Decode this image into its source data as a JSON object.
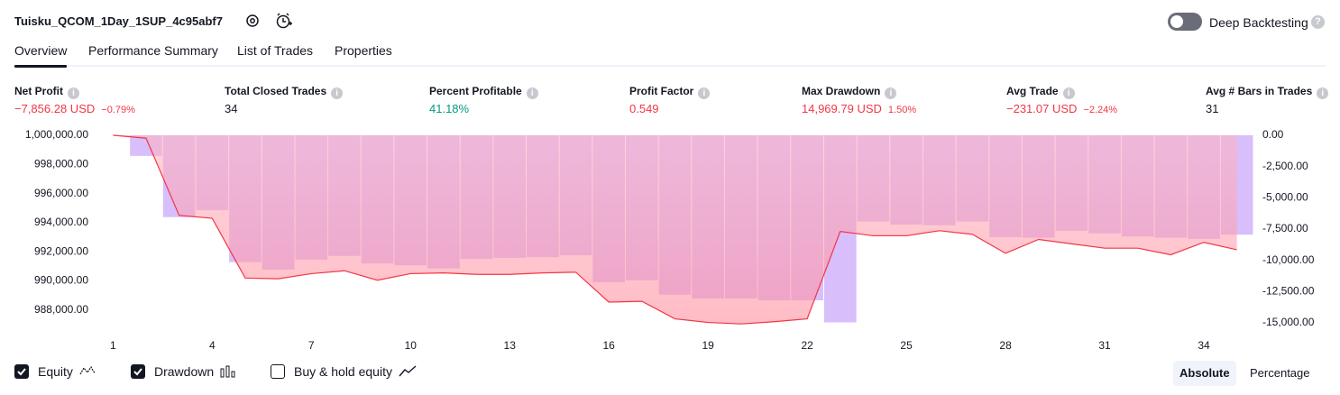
{
  "header": {
    "title": "Tuisku_QCOM_1Day_1SUP_4c95abf7",
    "deep_backtesting": "Deep Backtesting",
    "deep_backtesting_on": false
  },
  "tabs": [
    "Overview",
    "Performance Summary",
    "List of Trades",
    "Properties"
  ],
  "active_tab": 0,
  "stats": [
    {
      "label": "Net Profit",
      "value": "−7,856.28 USD",
      "sub": "−0.79%",
      "color": "#f23645"
    },
    {
      "label": "Total Closed Trades",
      "value": "34",
      "color": "#131722"
    },
    {
      "label": "Percent Profitable",
      "value": "41.18%",
      "color": "#089981"
    },
    {
      "label": "Profit Factor",
      "value": "0.549",
      "color": "#f23645"
    },
    {
      "label": "Max Drawdown",
      "value": "14,969.79 USD",
      "sub": "1.50%",
      "color": "#f23645"
    },
    {
      "label": "Avg Trade",
      "value": "−231.07 USD",
      "sub": "−2.24%",
      "color": "#f23645"
    },
    {
      "label": "Avg # Bars in Trades",
      "value": "31",
      "color": "#131722"
    }
  ],
  "chart_data": {
    "type": "combo",
    "x": [
      1,
      2,
      3,
      4,
      5,
      6,
      7,
      8,
      9,
      10,
      11,
      12,
      13,
      14,
      15,
      16,
      17,
      18,
      19,
      20,
      21,
      22,
      23,
      24,
      25,
      26,
      27,
      28,
      29,
      30,
      31,
      32,
      33,
      34,
      35
    ],
    "xlim": [
      0.5,
      35.5
    ],
    "xticks": [
      1,
      4,
      7,
      10,
      13,
      16,
      19,
      22,
      25,
      28,
      31,
      34
    ],
    "ylim": [
      987000,
      1000000
    ],
    "yticks": [
      {
        "value": 1000000,
        "label": "1,000,000.00"
      },
      {
        "value": 998000,
        "label": "998,000.00"
      },
      {
        "value": 996000,
        "label": "996,000.00"
      },
      {
        "value": 994000,
        "label": "994,000.00"
      },
      {
        "value": 992000,
        "label": "992,000.00"
      },
      {
        "value": 990000,
        "label": "990,000.00"
      },
      {
        "value": 988000,
        "label": "988,000.00"
      }
    ],
    "y2lim": [
      -15150,
      0
    ],
    "y2ticks": [
      {
        "value": 0,
        "label": "0.00"
      },
      {
        "value": -2500,
        "label": "-2,500.00"
      },
      {
        "value": -5000,
        "label": "-5,000.00"
      },
      {
        "value": -7500,
        "label": "-7,500.00"
      },
      {
        "value": -10000,
        "label": "-10,000.00"
      },
      {
        "value": -12500,
        "label": "-12,500.00"
      },
      {
        "value": -15000,
        "label": "-15,000.00"
      }
    ],
    "series": [
      {
        "name": "Equity",
        "type": "area",
        "color": "#f23645",
        "visible": true,
        "values": [
          1000000,
          999800,
          994500,
          994300,
          990200,
          990150,
          990500,
          990700,
          990050,
          990500,
          990550,
          990450,
          990450,
          990550,
          990600,
          988550,
          988600,
          987400,
          987150,
          987050,
          987200,
          987400,
          993400,
          993100,
          993100,
          993450,
          993200,
          991900,
          992850,
          992550,
          992250,
          992250,
          991800,
          992650,
          992144
        ]
      },
      {
        "name": "Drawdown",
        "type": "bar",
        "axis": "y2",
        "color": "#c7a3fa",
        "visible": true,
        "values": [
          0,
          -1650,
          -6550,
          -6000,
          -10150,
          -10750,
          -9950,
          -9650,
          -10250,
          -10400,
          -10650,
          -9900,
          -9800,
          -9750,
          -9600,
          -11750,
          -11600,
          -12750,
          -13050,
          -13050,
          -13200,
          -13200,
          -14970,
          -6900,
          -7150,
          -7200,
          -6900,
          -8150,
          -8200,
          -7650,
          -7850,
          -8100,
          -8200,
          -8300,
          -7950
        ]
      }
    ],
    "buy_hold": {
      "name": "Buy & hold equity",
      "visible": false
    },
    "views": [
      "Absolute",
      "Percentage"
    ],
    "active_view": 0
  }
}
